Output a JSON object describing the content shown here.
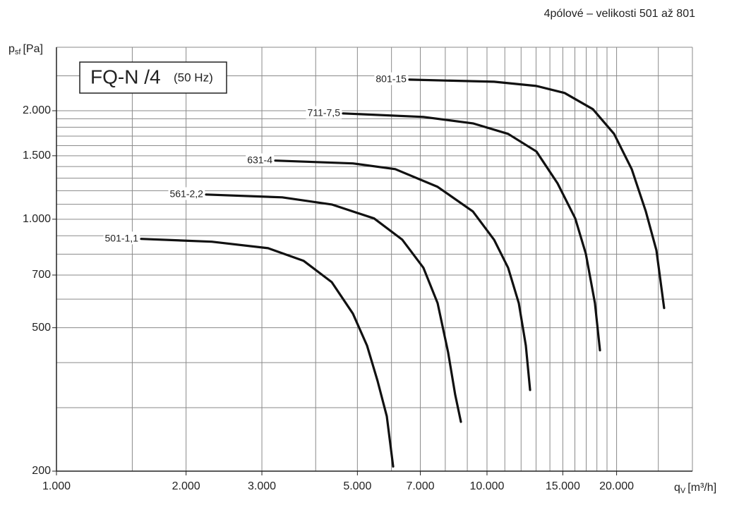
{
  "chart_data": {
    "type": "line",
    "header": "4pólové – velikosti 501 až 801",
    "title": "FQ-N /4",
    "subtitle": "(50 Hz)",
    "ylabel": {
      "symbol": "p",
      "subscript": "sf",
      "unit": "[Pa]"
    },
    "xlabel": {
      "symbol": "q",
      "subscript": "V",
      "unit": "[m³/h]"
    },
    "xlog": true,
    "ylog": true,
    "grid": true,
    "xlim": [
      1000,
      30000
    ],
    "ylim": [
      200,
      3000
    ],
    "xticks": [
      {
        "value": 1000,
        "label": "1.000"
      },
      {
        "value": 2000,
        "label": "2.000"
      },
      {
        "value": 3000,
        "label": "3.000"
      },
      {
        "value": 5000,
        "label": "5.000"
      },
      {
        "value": 7000,
        "label": "7.000"
      },
      {
        "value": 10000,
        "label": "10.000"
      },
      {
        "value": 15000,
        "label": "15.000"
      },
      {
        "value": 20000,
        "label": "20.000"
      }
    ],
    "yticks": [
      200,
      500,
      700,
      {
        "value": 1000,
        "label": "1.000"
      },
      {
        "value": 1500,
        "label": "1.500"
      },
      {
        "value": 2000,
        "label": "2.000"
      }
    ],
    "xminor": [
      1500,
      4000,
      6000,
      8000,
      9000,
      11000,
      12000,
      13000,
      14000,
      16000,
      17000,
      18000,
      19000,
      25000,
      30000
    ],
    "yminor": [
      300,
      400,
      600,
      800,
      900,
      1100,
      1200,
      1300,
      1400,
      1600,
      1700,
      1800,
      1900,
      2500,
      3000
    ],
    "series": [
      {
        "name": "501-1,1",
        "color": "#111111",
        "x": [
          1573,
          2294,
          3102,
          3748,
          4359,
          4882,
          5265,
          5570,
          5851,
          6053
        ],
        "values": [
          882,
          866,
          831,
          767,
          669,
          547,
          446,
          356,
          284,
          206
        ]
      },
      {
        "name": "561-2,2",
        "color": "#111111",
        "x": [
          2226,
          3346,
          4359,
          5467,
          6358,
          7118,
          7680,
          8124,
          8437,
          8698
        ],
        "values": [
          1171,
          1150,
          1099,
          1005,
          877,
          733,
          585,
          427,
          326,
          274
        ]
      },
      {
        "name": "631-4",
        "color": "#111111",
        "x": [
          3223,
          4882,
          6122,
          7680,
          9273,
          10385,
          11197,
          11854,
          12310,
          12589
        ],
        "values": [
          1454,
          1428,
          1377,
          1230,
          1051,
          877,
          733,
          585,
          446,
          336
        ]
      },
      {
        "name": "711-7,5",
        "color": "#111111",
        "x": [
          4630,
          7118,
          9273,
          11197,
          13024,
          14585,
          16029,
          16963,
          17815,
          18294
        ],
        "values": [
          1966,
          1922,
          1845,
          1725,
          1541,
          1258,
          1005,
          802,
          585,
          433
        ]
      },
      {
        "name": "801-15",
        "color": "#111111",
        "x": [
          6602,
          10385,
          13024,
          15145,
          17617,
          19730,
          21686,
          23383,
          24744,
          25788
        ],
        "values": [
          2440,
          2407,
          2343,
          2240,
          2020,
          1725,
          1377,
          1051,
          820,
          567
        ]
      }
    ]
  }
}
